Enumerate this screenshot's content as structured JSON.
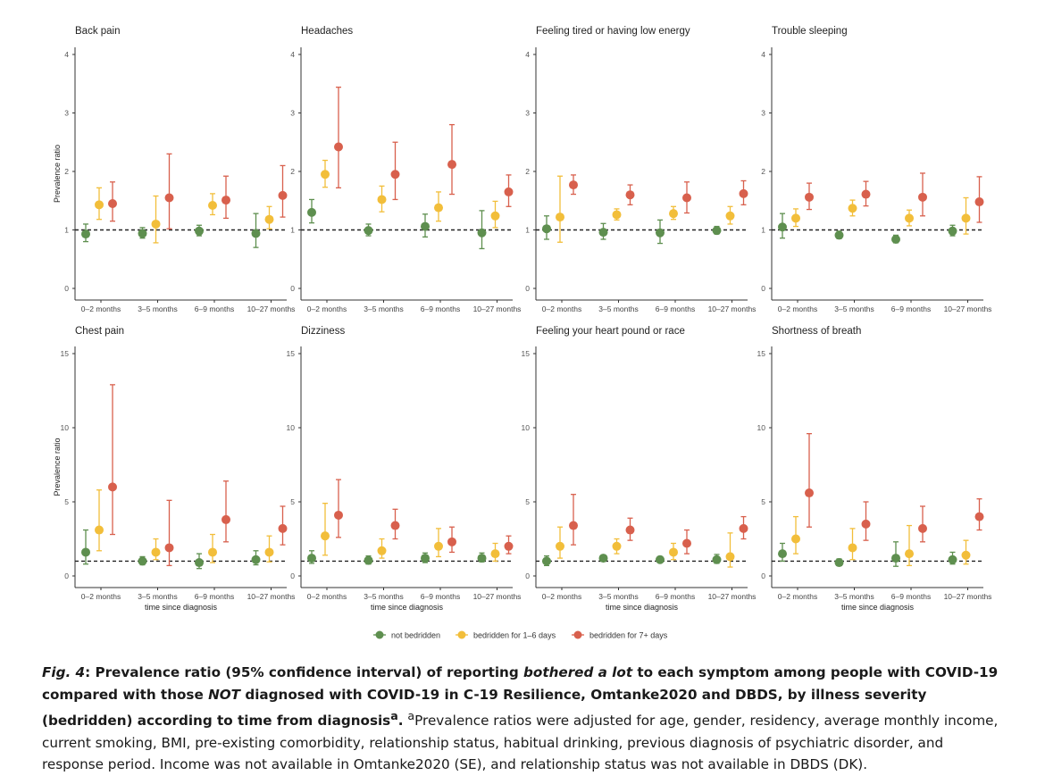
{
  "figure": {
    "xlabel": "time since diagnosis",
    "ylabel": "Prevalence ratio",
    "categories": [
      "0–2 months",
      "3–5 months",
      "6–9 months",
      "10–27 months"
    ],
    "reference_line": 1,
    "legend": [
      {
        "name": "not bedridden",
        "color": "#5e8f4f"
      },
      {
        "name": "bedridden for 1–6 days",
        "color": "#f2be3a"
      },
      {
        "name": "bedridden for 7+ days",
        "color": "#d8604d"
      }
    ]
  },
  "chart_data": [
    {
      "type": "scatter",
      "title": "Back pain",
      "ylabel": "Prevalence ratio",
      "xlabel": "",
      "categories": [
        "0–2 months",
        "3–5 months",
        "6–9 months",
        "10–27 months"
      ],
      "ylim": [
        0,
        4
      ],
      "yticks": [
        0,
        1,
        2,
        3,
        4
      ],
      "series": [
        {
          "name": "not bedridden",
          "values": [
            0.93,
            0.94,
            0.98,
            0.94
          ],
          "lower": [
            0.8,
            0.86,
            0.9,
            0.7
          ],
          "upper": [
            1.1,
            1.04,
            1.08,
            1.28
          ]
        },
        {
          "name": "bedridden for 1–6 days",
          "values": [
            1.43,
            1.1,
            1.42,
            1.18
          ],
          "lower": [
            1.18,
            0.78,
            1.26,
            1.02
          ],
          "upper": [
            1.72,
            1.58,
            1.62,
            1.4
          ]
        },
        {
          "name": "bedridden for 7+ days",
          "values": [
            1.45,
            1.55,
            1.51,
            1.59
          ],
          "lower": [
            1.15,
            1.02,
            1.2,
            1.22
          ],
          "upper": [
            1.82,
            2.3,
            1.92,
            2.1
          ]
        }
      ]
    },
    {
      "type": "scatter",
      "title": "Headaches",
      "ylabel": "",
      "xlabel": "",
      "categories": [
        "0–2 months",
        "3–5 months",
        "6–9 months",
        "10–27 months"
      ],
      "ylim": [
        0,
        4
      ],
      "yticks": [
        0,
        1,
        2,
        3,
        4
      ],
      "series": [
        {
          "name": "not bedridden",
          "values": [
            1.3,
            0.99,
            1.06,
            0.95
          ],
          "lower": [
            1.12,
            0.9,
            0.88,
            0.68
          ],
          "upper": [
            1.52,
            1.1,
            1.27,
            1.33
          ]
        },
        {
          "name": "bedridden for 1–6 days",
          "values": [
            1.95,
            1.52,
            1.38,
            1.24
          ],
          "lower": [
            1.73,
            1.31,
            1.15,
            1.04
          ],
          "upper": [
            2.19,
            1.75,
            1.65,
            1.49
          ]
        },
        {
          "name": "bedridden for 7+ days",
          "values": [
            2.42,
            1.95,
            2.12,
            1.65
          ],
          "lower": [
            1.72,
            1.52,
            1.61,
            1.4
          ],
          "upper": [
            3.44,
            2.5,
            2.8,
            1.94
          ]
        }
      ]
    },
    {
      "type": "scatter",
      "title": "Feeling tired or having low energy",
      "ylabel": "",
      "xlabel": "",
      "categories": [
        "0–2 months",
        "3–5 months",
        "6–9 months",
        "10–27 months"
      ],
      "ylim": [
        0,
        4
      ],
      "yticks": [
        0,
        1,
        2,
        3,
        4
      ],
      "series": [
        {
          "name": "not bedridden",
          "values": [
            1.02,
            0.96,
            0.95,
            0.99
          ],
          "lower": [
            0.84,
            0.84,
            0.77,
            0.93
          ],
          "upper": [
            1.24,
            1.11,
            1.17,
            1.06
          ]
        },
        {
          "name": "bedridden for 1–6 days",
          "values": [
            1.22,
            1.26,
            1.28,
            1.24
          ],
          "lower": [
            0.79,
            1.17,
            1.18,
            1.1
          ],
          "upper": [
            1.92,
            1.36,
            1.4,
            1.4
          ]
        },
        {
          "name": "bedridden for 7+ days",
          "values": [
            1.77,
            1.6,
            1.55,
            1.62
          ],
          "lower": [
            1.61,
            1.43,
            1.29,
            1.43
          ],
          "upper": [
            1.94,
            1.77,
            1.82,
            1.84
          ]
        }
      ]
    },
    {
      "type": "scatter",
      "title": "Trouble sleeping",
      "ylabel": "",
      "xlabel": "",
      "categories": [
        "0–2 months",
        "3–5 months",
        "6–9 months",
        "10–27 months"
      ],
      "ylim": [
        0,
        4
      ],
      "yticks": [
        0,
        1,
        2,
        3,
        4
      ],
      "series": [
        {
          "name": "not bedridden",
          "values": [
            1.05,
            0.91,
            0.84,
            0.98
          ],
          "lower": [
            0.86,
            0.85,
            0.78,
            0.9
          ],
          "upper": [
            1.28,
            0.98,
            0.91,
            1.08
          ]
        },
        {
          "name": "bedridden for 1–6 days",
          "values": [
            1.2,
            1.37,
            1.2,
            1.2
          ],
          "lower": [
            1.06,
            1.24,
            1.07,
            0.93
          ],
          "upper": [
            1.36,
            1.51,
            1.34,
            1.55
          ]
        },
        {
          "name": "bedridden for 7+ days",
          "values": [
            1.56,
            1.61,
            1.56,
            1.48
          ],
          "lower": [
            1.35,
            1.41,
            1.24,
            1.13
          ],
          "upper": [
            1.8,
            1.83,
            1.97,
            1.91
          ]
        }
      ]
    },
    {
      "type": "scatter",
      "title": "Chest pain",
      "ylabel": "Prevalence ratio",
      "xlabel": "time since diagnosis",
      "categories": [
        "0–2 months",
        "3–5 months",
        "6–9 months",
        "10–27 months"
      ],
      "ylim": [
        0,
        15
      ],
      "yticks": [
        0,
        5,
        10,
        15
      ],
      "series": [
        {
          "name": "not bedridden",
          "values": [
            1.6,
            1.0,
            0.9,
            1.1
          ],
          "lower": [
            0.8,
            0.75,
            0.5,
            0.75
          ],
          "upper": [
            3.1,
            1.3,
            1.5,
            1.7
          ]
        },
        {
          "name": "bedridden for 1–6 days",
          "values": [
            3.1,
            1.6,
            1.6,
            1.6
          ],
          "lower": [
            1.7,
            1.1,
            0.9,
            0.95
          ],
          "upper": [
            5.8,
            2.5,
            2.8,
            2.7
          ]
        },
        {
          "name": "bedridden for 7+ days",
          "values": [
            6.0,
            1.9,
            3.8,
            3.2
          ],
          "lower": [
            2.8,
            0.7,
            2.3,
            2.1
          ],
          "upper": [
            12.9,
            5.1,
            6.4,
            4.7
          ]
        }
      ]
    },
    {
      "type": "scatter",
      "title": "Dizziness",
      "ylabel": "",
      "xlabel": "time since diagnosis",
      "categories": [
        "0–2 months",
        "3–5 months",
        "6–9 months",
        "10–27 months"
      ],
      "ylim": [
        0,
        15
      ],
      "yticks": [
        0,
        5,
        10,
        15
      ],
      "series": [
        {
          "name": "not bedridden",
          "values": [
            1.2,
            1.05,
            1.2,
            1.2
          ],
          "lower": [
            0.85,
            0.8,
            0.9,
            0.95
          ],
          "upper": [
            1.7,
            1.35,
            1.55,
            1.55
          ]
        },
        {
          "name": "bedridden for 1–6 days",
          "values": [
            2.7,
            1.7,
            2.0,
            1.5
          ],
          "lower": [
            1.4,
            1.2,
            1.3,
            1.0
          ],
          "upper": [
            4.9,
            2.5,
            3.2,
            2.2
          ]
        },
        {
          "name": "bedridden for 7+ days",
          "values": [
            4.1,
            3.4,
            2.3,
            2.0
          ],
          "lower": [
            2.6,
            2.5,
            1.6,
            1.5
          ],
          "upper": [
            6.5,
            4.5,
            3.3,
            2.7
          ]
        }
      ]
    },
    {
      "type": "scatter",
      "title": "Feeling your heart pound or race",
      "ylabel": "",
      "xlabel": "time since diagnosis",
      "categories": [
        "0–2 months",
        "3–5 months",
        "6–9 months",
        "10–27 months"
      ],
      "ylim": [
        0,
        15
      ],
      "yticks": [
        0,
        5,
        10,
        15
      ],
      "series": [
        {
          "name": "not bedridden",
          "values": [
            1.0,
            1.2,
            1.1,
            1.1
          ],
          "lower": [
            0.7,
            1.0,
            0.9,
            0.85
          ],
          "upper": [
            1.35,
            1.4,
            1.3,
            1.45
          ]
        },
        {
          "name": "bedridden for 1–6 days",
          "values": [
            2.0,
            2.0,
            1.6,
            1.3
          ],
          "lower": [
            1.2,
            1.5,
            1.1,
            0.6
          ],
          "upper": [
            3.3,
            2.5,
            2.2,
            2.9
          ]
        },
        {
          "name": "bedridden for 7+ days",
          "values": [
            3.4,
            3.1,
            2.2,
            3.2
          ],
          "lower": [
            2.1,
            2.4,
            1.5,
            2.5
          ],
          "upper": [
            5.5,
            3.9,
            3.1,
            4.0
          ]
        }
      ]
    },
    {
      "type": "scatter",
      "title": "Shortness of breath",
      "ylabel": "",
      "xlabel": "time since diagnosis",
      "categories": [
        "0–2 months",
        "3–5 months",
        "6–9 months",
        "10–27 months"
      ],
      "ylim": [
        0,
        15
      ],
      "yticks": [
        0,
        5,
        10,
        15
      ],
      "series": [
        {
          "name": "not bedridden",
          "values": [
            1.5,
            0.9,
            1.2,
            1.1
          ],
          "lower": [
            1.0,
            0.7,
            0.65,
            0.8
          ],
          "upper": [
            2.2,
            1.15,
            2.3,
            1.6
          ]
        },
        {
          "name": "bedridden for 1–6 days",
          "values": [
            2.5,
            1.9,
            1.5,
            1.4
          ],
          "lower": [
            1.5,
            1.1,
            0.7,
            0.8
          ],
          "upper": [
            4.0,
            3.2,
            3.4,
            2.4
          ]
        },
        {
          "name": "bedridden for 7+ days",
          "values": [
            5.6,
            3.5,
            3.2,
            4.0
          ],
          "lower": [
            3.3,
            2.4,
            2.3,
            3.1
          ],
          "upper": [
            9.6,
            5.0,
            4.7,
            5.2
          ]
        }
      ]
    }
  ],
  "caption": {
    "fig_label": "Fig. 4",
    "bold_part1": ": Prevalence ratio (95% confidence interval) of reporting ",
    "bold_italic1": "bothered a lot",
    "bold_part2": " to each symptom among people with COVID-19 compared with those ",
    "bold_italic2": "NOT",
    "bold_part3": " diagnosed with COVID-19 in C-19 Resilience, Omtanke2020 and DBDS, by illness severity (bedridden) according to time from diagnosis",
    "bold_sup": "a",
    "bold_end": ".",
    "note_sup": "a",
    "note": "Prevalence ratios were adjusted for age, gender, residency, average monthly income, current smoking, BMI, pre-existing comorbidity, relationship status, habitual drinking, previous diagnosis of psychiatric disorder, and response period. Income was not available in Omtanke2020 (SE), and relationship status was not available in DBDS (DK)."
  }
}
